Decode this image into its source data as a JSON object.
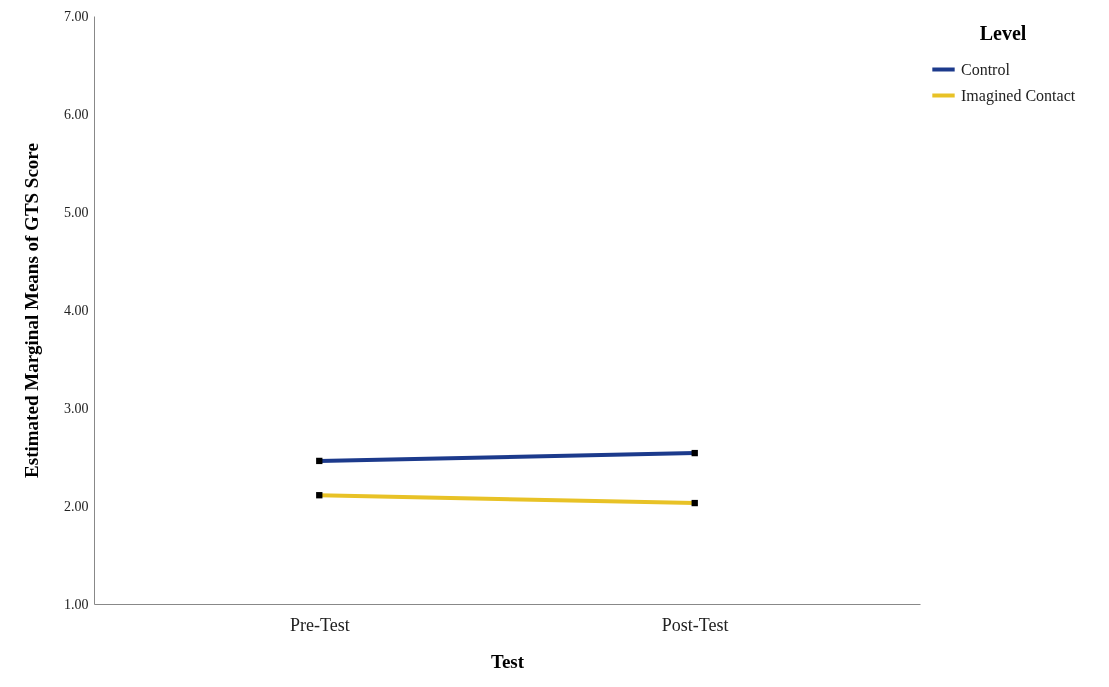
{
  "chart_data": {
    "type": "line",
    "xlabel": "Test",
    "ylabel": "Estimated Marginal Means of GTS Score",
    "legend_title": "Level",
    "categories": [
      "Pre-Test",
      "Post-Test"
    ],
    "series": [
      {
        "name": "Control",
        "color": "#1c3a8c",
        "values": [
          2.46,
          2.54
        ]
      },
      {
        "name": "Imagined Contact",
        "color": "#e8c226",
        "values": [
          2.11,
          2.03
        ]
      }
    ],
    "ylim": [
      1,
      7
    ],
    "yticks": [
      {
        "value": 1,
        "label": "1.00"
      },
      {
        "value": 2,
        "label": "2.00"
      },
      {
        "value": 3,
        "label": "3.00"
      },
      {
        "value": 4,
        "label": "4.00"
      },
      {
        "value": 5,
        "label": "5.00"
      },
      {
        "value": 6,
        "label": "6.00"
      },
      {
        "value": 7,
        "label": "7.00"
      }
    ],
    "grid": false,
    "legend": "top right",
    "marker": "square",
    "line_style": "solid"
  }
}
